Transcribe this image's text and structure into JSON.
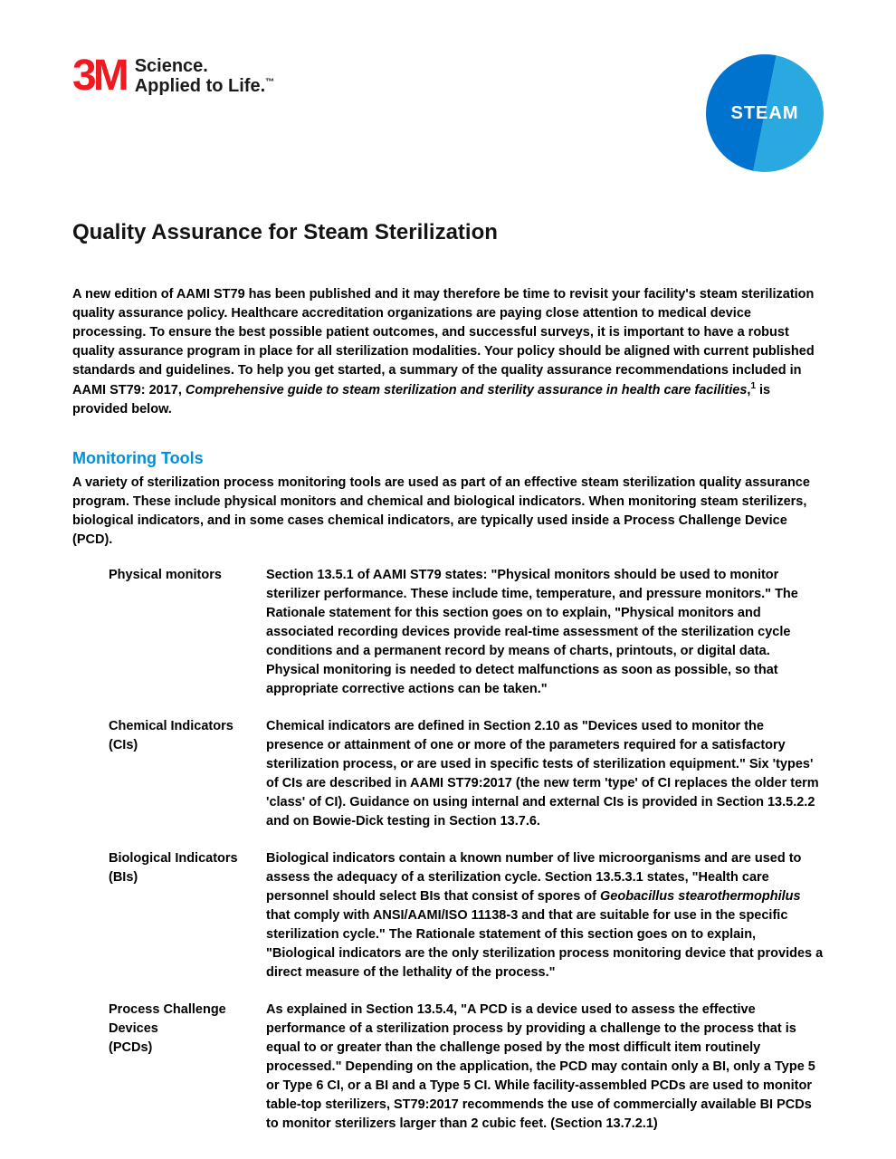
{
  "colors": {
    "brand_red": "#ee1921",
    "accent_blue": "#0090da",
    "badge_left": "#0073cf",
    "badge_right": "#2aa9e0",
    "text": "#000000",
    "bg": "#ffffff"
  },
  "typography": {
    "body_pt": 14.5,
    "title_pt": 24,
    "section_h_pt": 18,
    "body_weight": 600,
    "label_weight": 700,
    "title_weight": 800
  },
  "logo": {
    "mark": "3M",
    "tagline_line1": "Science.",
    "tagline_line2": "Applied to Life.",
    "tm": "™"
  },
  "badge": {
    "text": "STEAM"
  },
  "title": "Quality Assurance for Steam Sterilization",
  "intro": {
    "part1": "A new edition of AAMI ST79 has been published and it may therefore be time to revisit your facility's steam sterilization quality assurance policy. Healthcare accreditation organizations are paying close attention to medical device processing.  To ensure the best possible patient outcomes, and successful surveys, it is important to have a robust quality assurance program in place for all sterilization modalities.  Your policy should be aligned with current published standards and guidelines.  To help you get started, a summary of the quality assurance recommendations included in AAMI ST79: 2017, ",
    "italic": "Comprehensive guide to steam sterilization and sterility assurance in health care facilities",
    "part2": ",",
    "sup": "1",
    "part3": " is provided below."
  },
  "section": {
    "heading": "Monitoring Tools",
    "lead": "A variety of sterilization process monitoring tools are used as part of an effective steam sterilization quality assurance program. These include physical monitors and chemical and biological indicators. When monitoring steam sterilizers, biological indicators, and in some cases chemical indicators, are typically used inside a Process Challenge Device (PCD)."
  },
  "tools": [
    {
      "label": "Physical monitors",
      "body_pre": "Section 13.5.1 of AAMI ST79 states: \"Physical monitors should be used to monitor sterilizer performance. These include time, temperature, and pressure monitors.\" The Rationale statement for this section goes on to explain, \"Physical monitors and associated recording devices provide real-time assessment of the sterilization cycle conditions and a permanent record by means of charts, printouts, or digital data. Physical monitoring is needed to detect malfunctions as soon as possible, so that appropriate corrective actions can be taken.\"",
      "body_italic": "",
      "body_post": ""
    },
    {
      "label": "Chemical Indicators (CIs)",
      "body_pre": "Chemical indicators are defined in Section 2.10 as \"Devices used to monitor the presence or attainment of one or more of the parameters required for a satisfactory sterilization process, or are used in specific tests of sterilization equipment.\"  Six 'types' of CIs are described in AAMI ST79:2017 (the new term 'type' of CI replaces the older term 'class' of CI).  Guidance on using internal and external CIs is provided in Section 13.5.2.2 and on Bowie-Dick testing in Section 13.7.6.",
      "body_italic": "",
      "body_post": ""
    },
    {
      "label": "Biological Indicators (BIs)",
      "body_pre": "Biological indicators contain a known number of live microorganisms and are used to assess the adequacy of a sterilization cycle.  Section 13.5.3.1 states, \"Health care personnel should select BIs that consist of spores of ",
      "body_italic": "Geobacillus stearothermophilus",
      "body_post": " that comply with ANSI/AAMI/ISO 11138-3 and that are suitable for use in the specific sterilization cycle.\"  The Rationale statement of this section goes on to explain, \"Biological indicators are the only sterilization process monitoring device that provides a direct measure of the lethality of the process.\""
    },
    {
      "label": "Process Challenge Devices\n(PCDs)",
      "body_pre": "As explained in Section 13.5.4, \"A PCD is a device used to assess the effective performance of a sterilization process by providing a challenge to the process that is equal to or greater than the challenge posed by the most difficult item routinely processed.\" Depending on the application, the PCD may contain only a BI, only a Type 5 or Type 6 CI, or a BI and a Type 5 CI.  While facility-assembled PCDs are used to monitor table-top sterilizers, ST79:2017 recommends the use of commercially available BI PCDs to monitor sterilizers larger than 2 cubic feet. (Section 13.7.2.1)",
      "body_italic": "",
      "body_post": ""
    }
  ]
}
